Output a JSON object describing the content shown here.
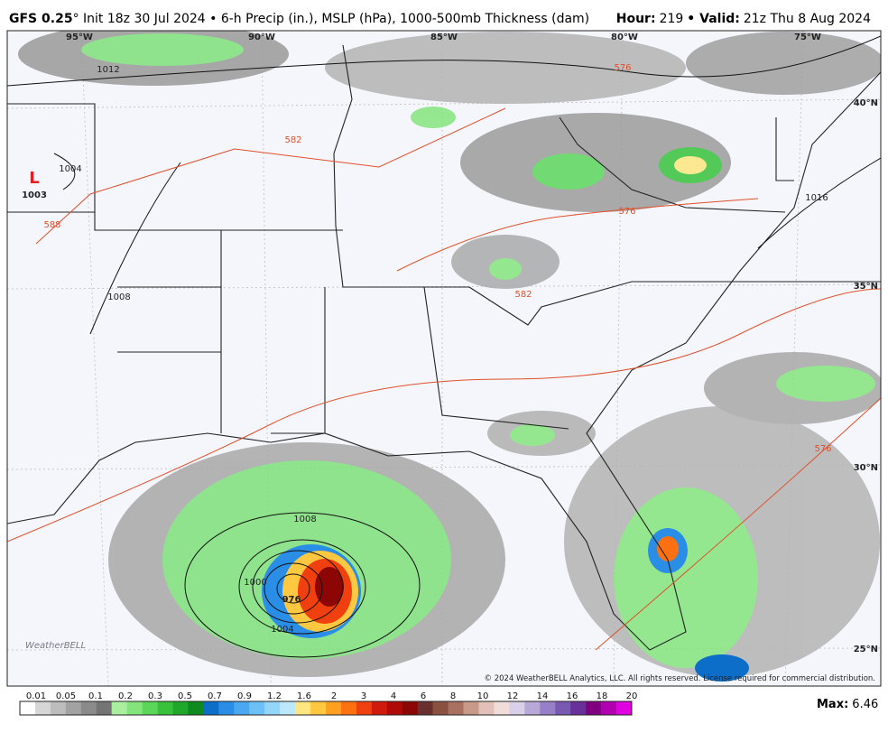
{
  "header": {
    "model": "GFS 0.25",
    "init": "° Init 18z 30 Jul 2024 • 6-h Precip (in.), MSLP (hPa), 1000-500mb Thickness (dam)",
    "hour_label": "Hour:",
    "hour": "219",
    "valid_label": "Valid:",
    "valid": "21z Thu 8 Aug 2024"
  },
  "longitudes": [
    "95°W",
    "90°W",
    "85°W",
    "80°W",
    "75°W"
  ],
  "latitudes": [
    "40°N",
    "35°N",
    "30°N",
    "25°N"
  ],
  "low": {
    "letter": "L",
    "pressure": "1003"
  },
  "isobar_labels": [
    "1012",
    "1004",
    "1008",
    "1016",
    "1008",
    "1000",
    "1004",
    "976"
  ],
  "thickness_labels": [
    "576",
    "582",
    "588",
    "582",
    "576",
    "576"
  ],
  "logo": "WeatherBELL",
  "copyright": "© 2024 WeatherBELL Analytics, LLC. All rights reserved. License required for commercial distribution.",
  "colorbar": {
    "labels": [
      "0.01",
      "0.05",
      "0.1",
      "0.2",
      "0.3",
      "0.5",
      "0.7",
      "0.9",
      "1.2",
      "1.6",
      "2",
      "3",
      "4",
      "6",
      "8",
      "10",
      "12",
      "14",
      "16",
      "18",
      "20"
    ],
    "colors": [
      "#ffffff",
      "#d6d6d6",
      "#bcbcbc",
      "#a2a2a2",
      "#8a8a8a",
      "#747474",
      "#a8f0a0",
      "#84e47c",
      "#5cd65a",
      "#38c23c",
      "#20a82a",
      "#108a1e",
      "#0c6ec8",
      "#2a8ee6",
      "#4aa8f0",
      "#6cc0f6",
      "#94d6fa",
      "#bce8fc",
      "#ffe680",
      "#ffc840",
      "#ffa020",
      "#ff7010",
      "#f04010",
      "#d01a0c",
      "#b00a08",
      "#8c0606",
      "#6a3030",
      "#8a5040",
      "#a87060",
      "#c89888",
      "#e0c0b8",
      "#f0dcd8",
      "#d8d0e8",
      "#b8a8d8",
      "#9880c8",
      "#7858b0",
      "#683098",
      "#800080",
      "#b000b0",
      "#e000e0"
    ]
  },
  "max": {
    "label": "Max:",
    "value": "6.46"
  }
}
